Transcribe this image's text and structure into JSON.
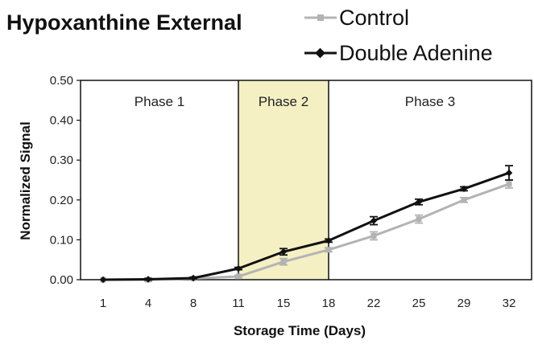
{
  "chart_data": {
    "type": "line",
    "title": "Hypoxanthine External",
    "xlabel": "Storage Time (Days)",
    "ylabel": "Normalized Signal",
    "categories": [
      "1",
      "4",
      "8",
      "11",
      "15",
      "18",
      "22",
      "25",
      "29",
      "32"
    ],
    "ylim": [
      0,
      0.5
    ],
    "yticks": [
      "0.00",
      "0.10",
      "0.20",
      "0.30",
      "0.40",
      "0.50"
    ],
    "grid": false,
    "legend_position": "top-right",
    "series": [
      {
        "name": "Control",
        "color": "#b3b3b3",
        "marker": "square",
        "values": [
          0.0,
          0.0,
          0.003,
          0.008,
          0.045,
          0.075,
          0.11,
          0.152,
          0.2,
          0.24
        ],
        "errors": [
          0.0,
          0.004,
          0.002,
          0.003,
          0.008,
          0.005,
          0.01,
          0.01,
          0.006,
          0.01
        ]
      },
      {
        "name": "Double Adenine",
        "color": "#111111",
        "marker": "diamond",
        "values": [
          0.0,
          0.001,
          0.004,
          0.028,
          0.07,
          0.098,
          0.148,
          0.195,
          0.228,
          0.268
        ],
        "errors": [
          0.0,
          0.002,
          0.002,
          0.003,
          0.008,
          0.004,
          0.01,
          0.007,
          0.005,
          0.018
        ]
      }
    ],
    "phases": [
      {
        "label": "Phase 1",
        "from": "1",
        "to": "11",
        "highlight": false
      },
      {
        "label": "Phase 2",
        "from": "11",
        "to": "18",
        "highlight": true,
        "color": "#f4f0c4"
      },
      {
        "label": "Phase 3",
        "from": "18",
        "to": "32",
        "highlight": false
      }
    ]
  }
}
